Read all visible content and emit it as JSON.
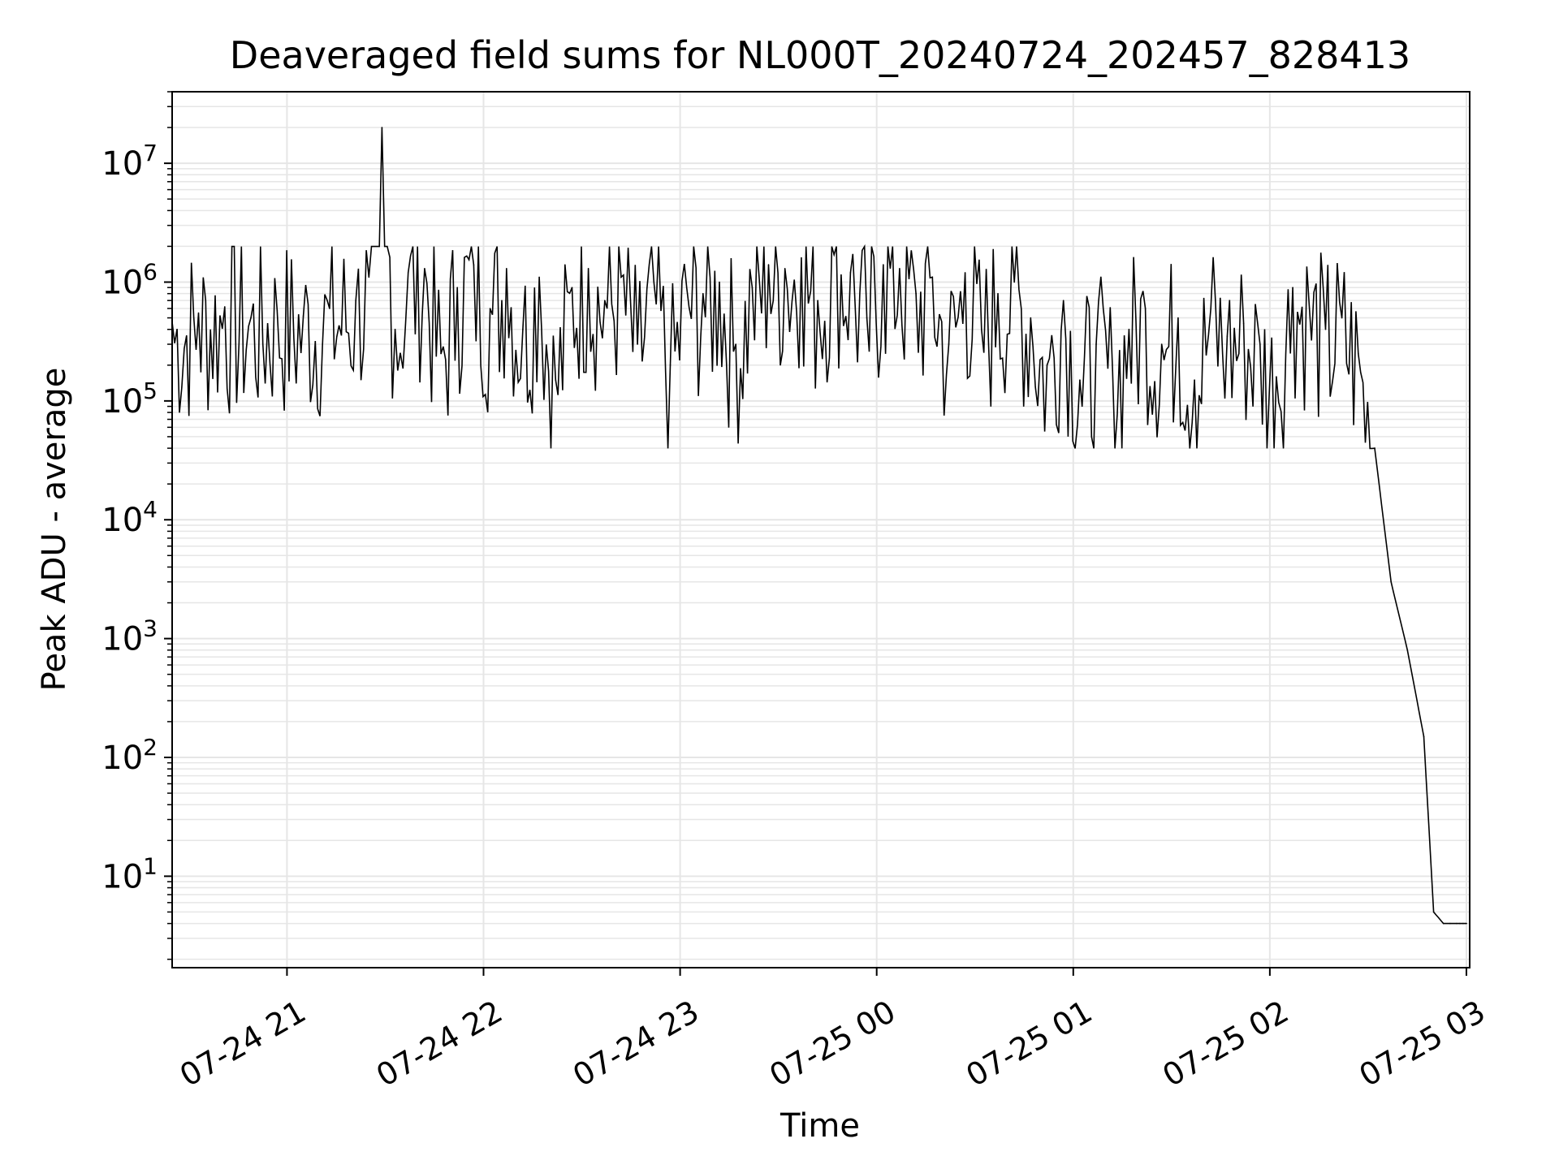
{
  "chart_data": {
    "type": "line",
    "title": "Deaveraged field sums for NL000T_20240724_202457_828413",
    "xlabel": "Time",
    "ylabel": "Peak ADU - average",
    "yscale": "log",
    "ylim": [
      1.7,
      40000000
    ],
    "xlim": [
      "2024-07-24 20:24:57",
      "2024-07-25 03:01:00"
    ],
    "grid": true,
    "line_color": "#000000",
    "grid_color": "#e6e6e6",
    "x_ticks": [
      {
        "t": "2024-07-24 21:00",
        "label": "07-24 21"
      },
      {
        "t": "2024-07-24 22:00",
        "label": "07-24 22"
      },
      {
        "t": "2024-07-24 23:00",
        "label": "07-24 23"
      },
      {
        "t": "2024-07-25 00:00",
        "label": "07-25 00"
      },
      {
        "t": "2024-07-25 01:00",
        "label": "07-25 01"
      },
      {
        "t": "2024-07-25 02:00",
        "label": "07-25 02"
      },
      {
        "t": "2024-07-25 03:00",
        "label": "07-25 03"
      }
    ],
    "y_ticks": [
      {
        "v": 10,
        "base": "10",
        "exp": "1"
      },
      {
        "v": 100,
        "base": "10",
        "exp": "2"
      },
      {
        "v": 1000,
        "base": "10",
        "exp": "3"
      },
      {
        "v": 10000,
        "base": "10",
        "exp": "4"
      },
      {
        "v": 100000,
        "base": "10",
        "exp": "5"
      },
      {
        "v": 1000000,
        "base": "10",
        "exp": "6"
      },
      {
        "v": 10000000,
        "base": "10",
        "exp": "7"
      }
    ],
    "series": [
      {
        "x": [
          "2024-07-24 20:25",
          "2024-07-24 20:33",
          "2024-07-24 20:41",
          "2024-07-24 20:49",
          "2024-07-24 20:57",
          "2024-07-24 21:05",
          "2024-07-24 21:13",
          "2024-07-24 21:21",
          "2024-07-24 21:25",
          "2024-07-24 21:29",
          "2024-07-24 21:33",
          "2024-07-24 21:37",
          "2024-07-24 21:42",
          "2024-07-24 21:47",
          "2024-07-24 21:52",
          "2024-07-24 21:57",
          "2024-07-24 22:02",
          "2024-07-24 22:07",
          "2024-07-24 22:12",
          "2024-07-24 22:17",
          "2024-07-24 22:22",
          "2024-07-24 22:27",
          "2024-07-24 22:32",
          "2024-07-24 22:37",
          "2024-07-24 22:42",
          "2024-07-24 22:47",
          "2024-07-24 22:52",
          "2024-07-24 22:57",
          "2024-07-24 23:02",
          "2024-07-24 23:07",
          "2024-07-24 23:12",
          "2024-07-24 23:17",
          "2024-07-24 23:22",
          "2024-07-24 23:27",
          "2024-07-24 23:32",
          "2024-07-24 23:37",
          "2024-07-24 23:42",
          "2024-07-24 23:47",
          "2024-07-24 23:52",
          "2024-07-24 23:57",
          "2024-07-25 00:02",
          "2024-07-25 00:07",
          "2024-07-25 00:12",
          "2024-07-25 00:17",
          "2024-07-25 00:22",
          "2024-07-25 00:27",
          "2024-07-25 00:32",
          "2024-07-25 00:37",
          "2024-07-25 00:42",
          "2024-07-25 00:47",
          "2024-07-25 00:52",
          "2024-07-25 00:57",
          "2024-07-25 01:02",
          "2024-07-25 01:07",
          "2024-07-25 01:12",
          "2024-07-25 01:17",
          "2024-07-25 01:22",
          "2024-07-25 01:27",
          "2024-07-25 01:32",
          "2024-07-25 01:37",
          "2024-07-25 01:42",
          "2024-07-25 01:47",
          "2024-07-25 01:52",
          "2024-07-25 01:57",
          "2024-07-25 02:02",
          "2024-07-25 02:07",
          "2024-07-25 02:12",
          "2024-07-25 02:17",
          "2024-07-25 02:22",
          "2024-07-25 02:27",
          "2024-07-25 02:32",
          "2024-07-25 02:37",
          "2024-07-25 02:42",
          "2024-07-25 02:47",
          "2024-07-25 02:50",
          "2024-07-25 02:53",
          "2024-07-25 02:55",
          "2024-07-25 02:57",
          "2024-07-25 02:58",
          "2024-07-25 02:59",
          "2024-07-25 03:00"
        ],
        "y": [
          450000,
          550000,
          620000,
          500000,
          580000,
          520000,
          600000,
          700000,
          1100000,
          20000000,
          400000,
          1200000,
          1300000,
          250000,
          900000,
          1400000,
          600000,
          1300000,
          400000,
          1100000,
          150000,
          900000,
          1300000,
          700000,
          1100000,
          300000,
          1000000,
          200000,
          900000,
          800000,
          1000000,
          300000,
          900000,
          1400000,
          1300000,
          1600000,
          700000,
          1700000,
          1200000,
          500000,
          1400000,
          1300000,
          800000,
          1100000,
          300000,
          1200000,
          400000,
          800000,
          1000000,
          500000,
          200000,
          700000,
          150000,
          300000,
          180000,
          400000,
          600000,
          300000,
          500000,
          150000,
          600000,
          350000,
          450000,
          300000,
          160000,
          900000,
          650000,
          400000,
          500000,
          250000,
          40000,
          3000,
          800,
          150,
          5,
          4,
          4,
          4,
          4,
          4,
          4
        ]
      }
    ]
  }
}
